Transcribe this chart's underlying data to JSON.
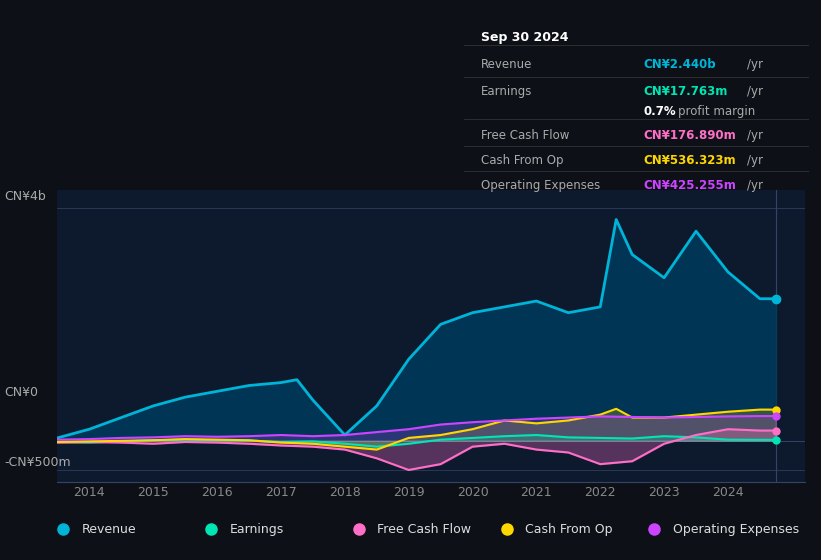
{
  "bg_color": "#0d1117",
  "chart_bg": "#0d1a2e",
  "title": "Sep 30 2024",
  "tooltip": {
    "Revenue": {
      "value": "CN¥2.440b",
      "color": "#00b4d8"
    },
    "Earnings": {
      "value": "CN¥17.763m",
      "color": "#00e5b4"
    },
    "profit_margin": "0.7%",
    "Free Cash Flow": {
      "value": "CN¥176.890m",
      "color": "#ff6ec7"
    },
    "Cash From Op": {
      "value": "CN¥536.323m",
      "color": "#ffd700"
    },
    "Operating Expenses": {
      "value": "CN¥425.255m",
      "color": "#cc44ff"
    }
  },
  "yticks_labels": [
    "CN¥4b",
    "CN¥0",
    "-CN¥500m"
  ],
  "yticks_values": [
    4000000000,
    0,
    -500000000
  ],
  "xlim": [
    2013.5,
    2025.2
  ],
  "ylim": [
    -700000000,
    4300000000
  ],
  "ylabel_top": "CN¥4b",
  "ylabel_zero": "CN¥0",
  "ylabel_neg": "-CN¥500m",
  "legend": [
    {
      "label": "Revenue",
      "color": "#00b4d8"
    },
    {
      "label": "Earnings",
      "color": "#00e5b4"
    },
    {
      "label": "Free Cash Flow",
      "color": "#ff6ec7"
    },
    {
      "label": "Cash From Op",
      "color": "#ffd700"
    },
    {
      "label": "Operating Expenses",
      "color": "#cc44ff"
    }
  ],
  "revenue": {
    "x": [
      2013.5,
      2014.0,
      2014.5,
      2015.0,
      2015.5,
      2016.0,
      2016.5,
      2017.0,
      2017.25,
      2017.5,
      2018.0,
      2018.5,
      2019.0,
      2019.5,
      2020.0,
      2020.5,
      2021.0,
      2021.5,
      2022.0,
      2022.25,
      2022.5,
      2023.0,
      2023.5,
      2024.0,
      2024.5,
      2024.75
    ],
    "y": [
      50000000,
      200000000,
      400000000,
      600000000,
      750000000,
      850000000,
      950000000,
      1000000000,
      1050000000,
      700000000,
      100000000,
      600000000,
      1400000000,
      2000000000,
      2200000000,
      2300000000,
      2400000000,
      2200000000,
      2300000000,
      3800000000,
      3200000000,
      2800000000,
      3600000000,
      2900000000,
      2440000000,
      2440000000
    ],
    "color": "#00b4d8",
    "fill_color": "#003a5c"
  },
  "earnings": {
    "x": [
      2013.5,
      2014.0,
      2014.5,
      2015.0,
      2015.5,
      2016.0,
      2016.5,
      2017.0,
      2017.5,
      2018.0,
      2018.5,
      2019.0,
      2019.5,
      2020.0,
      2020.5,
      2021.0,
      2021.5,
      2022.0,
      2022.5,
      2023.0,
      2023.5,
      2024.0,
      2024.5,
      2024.75
    ],
    "y": [
      -20000000,
      -30000000,
      -10000000,
      10000000,
      20000000,
      10000000,
      5000000,
      -20000000,
      -10000000,
      -50000000,
      -100000000,
      -50000000,
      20000000,
      50000000,
      80000000,
      100000000,
      60000000,
      50000000,
      40000000,
      80000000,
      60000000,
      20000000,
      17763000,
      17763000
    ],
    "color": "#00e5b4"
  },
  "free_cash_flow": {
    "x": [
      2013.5,
      2014.0,
      2014.5,
      2015.0,
      2015.5,
      2016.0,
      2016.5,
      2017.0,
      2017.5,
      2018.0,
      2018.5,
      2019.0,
      2019.5,
      2020.0,
      2020.5,
      2021.0,
      2021.5,
      2022.0,
      2022.5,
      2023.0,
      2023.5,
      2024.0,
      2024.5,
      2024.75
    ],
    "y": [
      -30000000,
      -20000000,
      -30000000,
      -50000000,
      -20000000,
      -30000000,
      -50000000,
      -80000000,
      -100000000,
      -150000000,
      -300000000,
      -500000000,
      -400000000,
      -100000000,
      -50000000,
      -150000000,
      -200000000,
      -400000000,
      -350000000,
      -50000000,
      100000000,
      200000000,
      176890000,
      176890000
    ],
    "color": "#ff6ec7"
  },
  "cash_from_op": {
    "x": [
      2013.5,
      2014.0,
      2014.5,
      2015.0,
      2015.5,
      2016.0,
      2016.5,
      2017.0,
      2017.5,
      2018.0,
      2018.5,
      2019.0,
      2019.5,
      2020.0,
      2020.5,
      2021.0,
      2021.5,
      2022.0,
      2022.25,
      2022.5,
      2023.0,
      2023.5,
      2024.0,
      2024.5,
      2024.75
    ],
    "y": [
      -20000000,
      -10000000,
      0,
      10000000,
      30000000,
      20000000,
      10000000,
      -30000000,
      -50000000,
      -100000000,
      -150000000,
      50000000,
      100000000,
      200000000,
      350000000,
      300000000,
      350000000,
      450000000,
      550000000,
      400000000,
      400000000,
      450000000,
      500000000,
      536323000,
      536323000
    ],
    "color": "#ffd700"
  },
  "operating_expenses": {
    "x": [
      2013.5,
      2014.0,
      2014.5,
      2015.0,
      2015.5,
      2016.0,
      2016.5,
      2017.0,
      2017.5,
      2018.0,
      2018.5,
      2019.0,
      2019.5,
      2020.0,
      2020.5,
      2021.0,
      2021.5,
      2022.0,
      2022.5,
      2023.0,
      2023.5,
      2024.0,
      2024.5,
      2024.75
    ],
    "y": [
      20000000,
      30000000,
      50000000,
      60000000,
      80000000,
      70000000,
      80000000,
      100000000,
      80000000,
      100000000,
      150000000,
      200000000,
      280000000,
      320000000,
      350000000,
      380000000,
      400000000,
      420000000,
      410000000,
      400000000,
      410000000,
      420000000,
      425255000,
      425255000
    ],
    "color": "#cc44ff"
  }
}
